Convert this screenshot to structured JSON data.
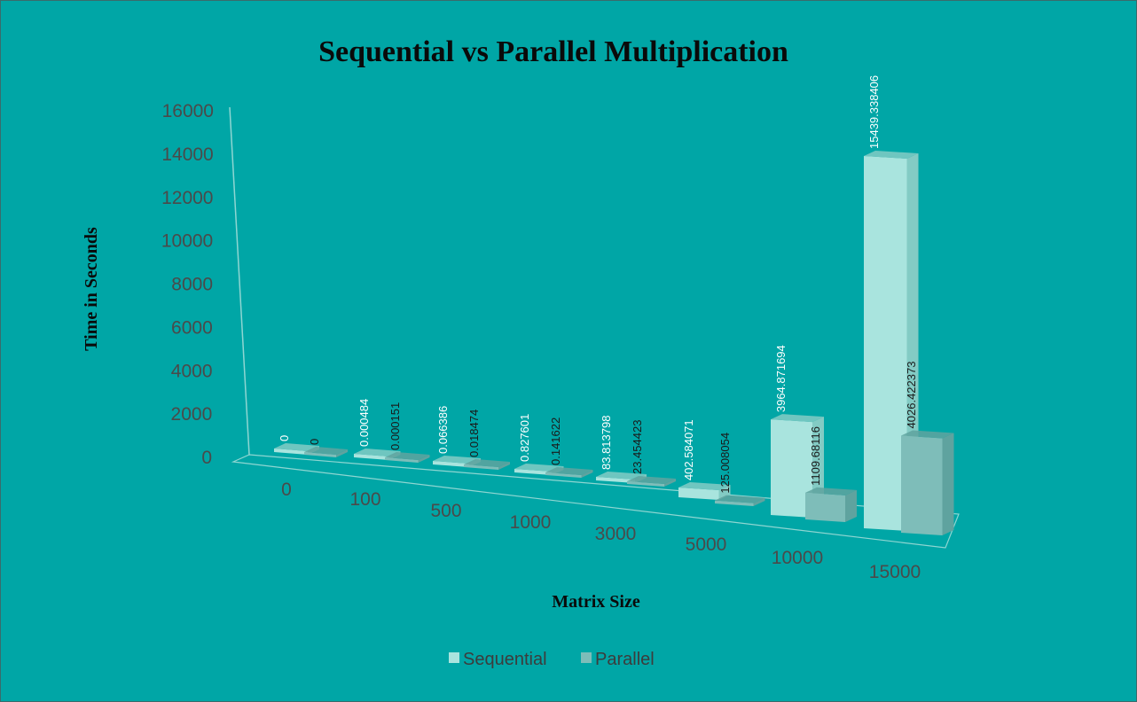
{
  "chart_data": {
    "type": "bar",
    "title": "Sequential vs Parallel Multiplication",
    "xlabel": "Matrix Size",
    "ylabel": "Time in Seconds",
    "ylim": [
      0,
      16000
    ],
    "y_ticks": [
      "0",
      "2000",
      "4000",
      "6000",
      "8000",
      "10000",
      "12000",
      "14000",
      "16000"
    ],
    "categories": [
      "0",
      "100",
      "500",
      "1000",
      "3000",
      "5000",
      "10000",
      "15000"
    ],
    "series": [
      {
        "name": "Sequential",
        "color": "#a9e4de",
        "values": [
          0,
          0.000484,
          0.066386,
          0.827601,
          83.813798,
          402.584071,
          3964.871694,
          15439.338406
        ],
        "labels": [
          "0",
          "0.000484",
          "0.066386",
          "0.827601",
          "83.813798",
          "402.584071",
          "3964.871694",
          "15439.338406"
        ]
      },
      {
        "name": "Parallel",
        "color": "#7ebdb9",
        "values": [
          0,
          0.000151,
          0.018474,
          0.141622,
          23.454423,
          125.008054,
          1109.68116,
          4026.422373
        ],
        "labels": [
          "0",
          "0.000151",
          "0.018474",
          "0.141622",
          "23.454423",
          "125.008054",
          "1109.68116",
          "4026.422373"
        ]
      }
    ],
    "legend_position": "bottom",
    "gridlines": false,
    "perspective": "3d"
  }
}
